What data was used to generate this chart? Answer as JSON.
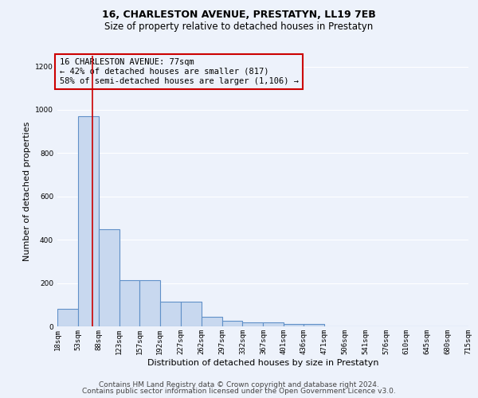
{
  "title": "16, CHARLESTON AVENUE, PRESTATYN, LL19 7EB",
  "subtitle": "Size of property relative to detached houses in Prestatyn",
  "xlabel": "Distribution of detached houses by size in Prestatyn",
  "ylabel": "Number of detached properties",
  "footnote1": "Contains HM Land Registry data © Crown copyright and database right 2024.",
  "footnote2": "Contains public sector information licensed under the Open Government Licence v3.0.",
  "annotation_line1": "16 CHARLESTON AVENUE: 77sqm",
  "annotation_line2": "← 42% of detached houses are smaller (817)",
  "annotation_line3": "58% of semi-detached houses are larger (1,106) →",
  "bar_left_edges": [
    18,
    53,
    88,
    123,
    157,
    192,
    227,
    262,
    297,
    332,
    367,
    401,
    436,
    471,
    506,
    541,
    576,
    610,
    645,
    680
  ],
  "bar_widths": [
    35,
    35,
    35,
    34,
    35,
    35,
    35,
    35,
    35,
    35,
    34,
    35,
    35,
    35,
    35,
    35,
    34,
    35,
    35,
    35
  ],
  "bar_heights": [
    80,
    970,
    450,
    215,
    215,
    115,
    115,
    45,
    25,
    20,
    20,
    12,
    10,
    0,
    0,
    0,
    0,
    0,
    0,
    0
  ],
  "bar_color": "#c8d8ef",
  "bar_edge_color": "#6090c8",
  "bar_edge_width": 0.8,
  "background_color": "#edf2fb",
  "property_line_x": 77,
  "property_line_color": "#cc0000",
  "annotation_box_color": "#cc0000",
  "xlim": [
    18,
    715
  ],
  "ylim": [
    0,
    1250
  ],
  "yticks": [
    0,
    200,
    400,
    600,
    800,
    1000,
    1200
  ],
  "xtick_labels": [
    "18sqm",
    "53sqm",
    "88sqm",
    "123sqm",
    "157sqm",
    "192sqm",
    "227sqm",
    "262sqm",
    "297sqm",
    "332sqm",
    "367sqm",
    "401sqm",
    "436sqm",
    "471sqm",
    "506sqm",
    "541sqm",
    "576sqm",
    "610sqm",
    "645sqm",
    "680sqm",
    "715sqm"
  ],
  "xtick_positions": [
    18,
    53,
    88,
    123,
    157,
    192,
    227,
    262,
    297,
    332,
    367,
    401,
    436,
    471,
    506,
    541,
    576,
    610,
    645,
    680,
    715
  ],
  "grid_color": "#ffffff",
  "title_fontsize": 9,
  "subtitle_fontsize": 8.5,
  "axis_label_fontsize": 8,
  "tick_fontsize": 6.5,
  "annotation_fontsize": 7.5,
  "footnote_fontsize": 6.5
}
